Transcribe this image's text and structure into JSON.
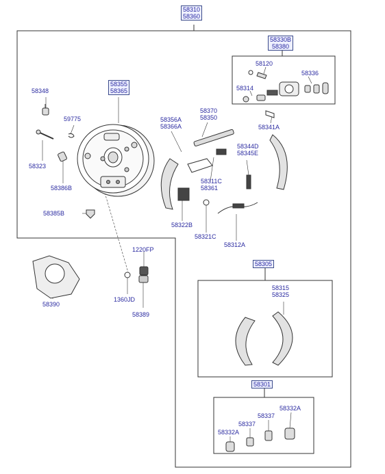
{
  "assembly": {
    "top": [
      "58310",
      "58360"
    ]
  },
  "groups": {
    "wheel_cylinder": [
      "58330B",
      "58380"
    ],
    "shoe_set": "58305",
    "repair_kit": "58301"
  },
  "labels": {
    "p58120": "58120",
    "p58336": "58336",
    "p58314": "58314",
    "p58341A": "58341A",
    "p58355": [
      "58355",
      "58365"
    ],
    "p58348": "58348",
    "p59775": "59775",
    "p58323": "58323",
    "p58386B": "58386B",
    "p58385B": "58385B",
    "p58356A": [
      "58356A",
      "58366A"
    ],
    "p58370": [
      "58370",
      "58350"
    ],
    "p58344D": [
      "58344D",
      "58345E"
    ],
    "p58311C": [
      "58311C",
      "58361"
    ],
    "p58322B": "58322B",
    "p58321C": "58321C",
    "p58312A": "58312A",
    "p1220FP": "1220FP",
    "p1360JD": "1360JD",
    "p58389": "58389",
    "p58390": "58390",
    "p58315": [
      "58315",
      "58325"
    ],
    "k58337a": "58337",
    "k58337b": "58337",
    "k58332Aa": "58332A",
    "k58332Ab": "58332A"
  }
}
